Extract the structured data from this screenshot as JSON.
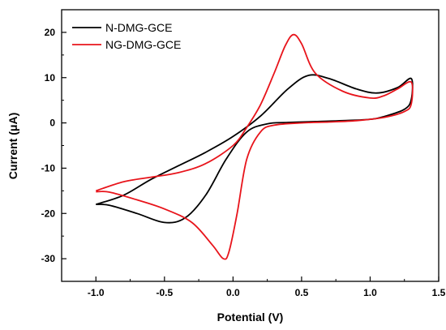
{
  "chart_data": {
    "type": "line",
    "xlabel": "Potential (V)",
    "ylabel": "Current (μA)",
    "xlim": [
      -1.25,
      1.5
    ],
    "ylim": [
      -35,
      25
    ],
    "xticks": [
      -1.0,
      -0.5,
      0.0,
      0.5,
      1.0,
      1.5
    ],
    "yticks": [
      -30,
      -20,
      -10,
      0,
      10,
      20
    ],
    "xtick_labels": [
      "-1.0",
      "-0.5",
      "0.0",
      "0.5",
      "1.0",
      "1.5"
    ],
    "ytick_labels": [
      "-30",
      "-20",
      "-10",
      "0",
      "10",
      "20"
    ],
    "legend_position": "top-left",
    "grid": false,
    "series": [
      {
        "name": "N-DMG-GCE",
        "color": "#000000",
        "x": [
          -1.0,
          -0.8,
          -0.6,
          -0.4,
          -0.2,
          0.0,
          0.2,
          0.4,
          0.55,
          0.7,
          0.9,
          1.05,
          1.2,
          1.3,
          1.3,
          1.25,
          1.1,
          1.0,
          0.8,
          0.6,
          0.4,
          0.25,
          0.1,
          -0.05,
          -0.2,
          -0.35,
          -0.5,
          -0.7,
          -0.9,
          -1.0
        ],
        "y": [
          -18.0,
          -16.0,
          -12.5,
          -9.5,
          -6.5,
          -3.0,
          1.5,
          7.5,
          10.5,
          9.8,
          7.5,
          6.6,
          7.8,
          9.8,
          5.2,
          3.0,
          1.4,
          0.8,
          0.5,
          0.3,
          0.1,
          -0.2,
          -2.0,
          -8.0,
          -16.0,
          -21.0,
          -22.0,
          -20.0,
          -18.2,
          -18.0
        ]
      },
      {
        "name": "NG-DMG-GCE",
        "color": "#e8141b",
        "x": [
          -1.0,
          -0.8,
          -0.6,
          -0.4,
          -0.2,
          0.0,
          0.1,
          0.2,
          0.3,
          0.38,
          0.44,
          0.5,
          0.6,
          0.8,
          1.0,
          1.1,
          1.2,
          1.3,
          1.3,
          1.25,
          1.1,
          0.9,
          0.7,
          0.5,
          0.3,
          0.2,
          0.1,
          0.03,
          -0.03,
          -0.07,
          -0.15,
          -0.3,
          -0.5,
          -0.7,
          -0.9,
          -1.0
        ],
        "y": [
          -15.0,
          -13.0,
          -12.0,
          -11.0,
          -9.0,
          -5.0,
          -1.0,
          4.0,
          11.0,
          17.0,
          19.5,
          17.5,
          11.0,
          7.0,
          5.5,
          6.0,
          7.5,
          9.0,
          4.2,
          2.5,
          1.2,
          0.5,
          0.2,
          0.0,
          -0.5,
          -2.0,
          -8.0,
          -20.0,
          -28.5,
          -30.0,
          -27.0,
          -22.0,
          -19.0,
          -17.0,
          -15.3,
          -15.2
        ]
      }
    ]
  }
}
